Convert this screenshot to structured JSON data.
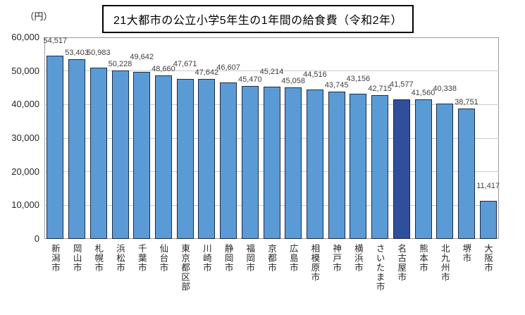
{
  "chart_data": {
    "type": "bar",
    "title": "21大都市の公立小学5年生の1年間の給食費（令和2年）",
    "unit_label": "（円）",
    "categories": [
      "新潟市",
      "岡山市",
      "札幌市",
      "浜松市",
      "千葉市",
      "仙台市",
      "東京都区部",
      "川崎市",
      "静岡市",
      "福岡市",
      "京都市",
      "広島市",
      "相模原市",
      "神戸市",
      "横浜市",
      "さいたま市",
      "名古屋市",
      "熊本市",
      "北九州市",
      "堺市",
      "大阪市"
    ],
    "values": [
      54517,
      53403,
      50983,
      50228,
      49642,
      48660,
      47671,
      47642,
      46607,
      45470,
      45214,
      45058,
      44516,
      43745,
      43156,
      42715,
      41577,
      41560,
      40338,
      38751,
      11417
    ],
    "value_labels": [
      "54,517",
      "53,403",
      "50,983",
      "50,228",
      "49,642",
      "48,660",
      "47,671",
      "47,642",
      "46,607",
      "45,470",
      "45,214",
      "45,058",
      "44,516",
      "43,745",
      "43,156",
      "42,715",
      "41,577",
      "41,560",
      "40,338",
      "38,751",
      "11,417"
    ],
    "highlight_index": 16,
    "highlight_category": "名古屋市",
    "xlabel": "",
    "ylabel": "",
    "ylim": [
      0,
      60000
    ],
    "ytick_step": 10000,
    "ytick_labels": [
      "0",
      "10,000",
      "20,000",
      "30,000",
      "40,000",
      "50,000",
      "60,000"
    ],
    "grid": true,
    "legend": "none",
    "colors": {
      "bar_fill": "#5B9BD5",
      "bar_highlight_fill": "#2F4F9B",
      "bar_border": "#1C2B4A",
      "gridline": "#CBCBCB",
      "plot_border": "#9B9B9B",
      "value_label_text": "#404040",
      "axis_text": "#262626",
      "title_text": "#000000",
      "title_border": "#000000",
      "background": "#FFFFFF"
    }
  }
}
